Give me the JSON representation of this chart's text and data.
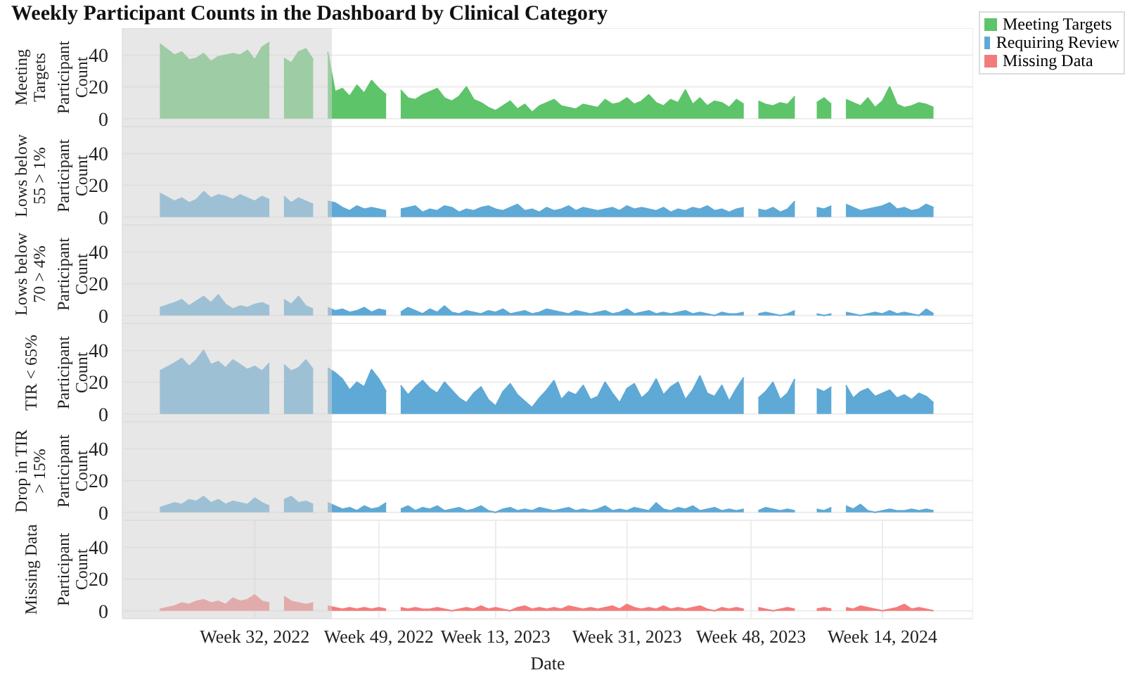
{
  "chart_data": [
    {
      "type": "area",
      "title": "Weekly Participant Counts in the Dashboard by Clinical Category",
      "subtitle": "Meeting Targets",
      "ylabel": "Participant Count",
      "legend": "top right",
      "grid": true,
      "tick_labels": "y",
      "xlim": [
        "2022-04-03",
        "2024-06-27"
      ],
      "ylim": [
        -5,
        57
      ],
      "yticks": [
        0,
        20,
        40
      ],
      "xticks": [
        {
          "value": "2022-08-08",
          "label": null
        },
        {
          "value": "2022-12-05",
          "label": null
        },
        {
          "value": "2023-03-27",
          "label": null
        },
        {
          "value": "2023-07-31",
          "label": null
        },
        {
          "value": "2023-11-27",
          "label": null
        },
        {
          "value": "2024-04-01",
          "label": null
        }
      ],
      "bands": [
        {
          "axis": "x",
          "from": "2022-04-03",
          "to": "2022-10-21",
          "color": "#d4d4d4"
        }
      ],
      "x": [
        "2022-05-09",
        "2022-05-23",
        "2022-05-30",
        "2022-06-06",
        "2022-06-13",
        "2022-06-20",
        "2022-06-27",
        "2022-07-04",
        "2022-07-11",
        "2022-07-18",
        "2022-07-25",
        "2022-08-01",
        "2022-08-08",
        "2022-08-15",
        "2022-08-22",
        "2022-08-29",
        "2022-09-05",
        "2022-09-12",
        "2022-09-19",
        "2022-09-26",
        "2022-10-03",
        "2022-10-10",
        "2022-10-17",
        "2022-10-24",
        "2022-10-31",
        "2022-11-07",
        "2022-11-14",
        "2022-11-21",
        "2022-11-28",
        "2022-12-05",
        "2022-12-12",
        "2022-12-19",
        "2022-12-26",
        "2023-01-02",
        "2023-01-09",
        "2023-01-16",
        "2023-01-23",
        "2023-01-30",
        "2023-02-06",
        "2023-02-13",
        "2023-02-20",
        "2023-02-27",
        "2023-03-06",
        "2023-03-13",
        "2023-03-20",
        "2023-03-27",
        "2023-04-03",
        "2023-04-10",
        "2023-04-17",
        "2023-04-24",
        "2023-05-01",
        "2023-05-08",
        "2023-05-15",
        "2023-05-22",
        "2023-05-29",
        "2023-06-05",
        "2023-06-12",
        "2023-06-19",
        "2023-06-26",
        "2023-07-03",
        "2023-07-10",
        "2023-07-17",
        "2023-07-24",
        "2023-07-31",
        "2023-08-07",
        "2023-08-14",
        "2023-08-21",
        "2023-08-28",
        "2023-09-04",
        "2023-09-11",
        "2023-09-18",
        "2023-09-25",
        "2023-10-02",
        "2023-10-09",
        "2023-10-16",
        "2023-10-23",
        "2023-10-30",
        "2023-11-06",
        "2023-11-13",
        "2023-11-20",
        "2023-11-27",
        "2023-12-04",
        "2023-12-11",
        "2023-12-18",
        "2023-12-25",
        "2024-01-01",
        "2024-01-08",
        "2024-01-15",
        "2024-01-22",
        "2024-01-29",
        "2024-02-05",
        "2024-02-12",
        "2024-02-19",
        "2024-02-26",
        "2024-03-04",
        "2024-03-11",
        "2024-03-18",
        "2024-03-25",
        "2024-04-01",
        "2024-04-08",
        "2024-04-15",
        "2024-04-22",
        "2024-04-29",
        "2024-05-06",
        "2024-05-13",
        "2024-05-20"
      ],
      "series": [
        {
          "name": "Meeting Targets",
          "color": "#5ec46a",
          "values": [
            47,
            40,
            42,
            37,
            38,
            41,
            36,
            39,
            40,
            41,
            40,
            43,
            37,
            45,
            48,
            null,
            38,
            35,
            42,
            44,
            37,
            null,
            42,
            17,
            19,
            14,
            21,
            16,
            24,
            19,
            15,
            null,
            18,
            13,
            12,
            15,
            17,
            19,
            13,
            11,
            14,
            20,
            12,
            10,
            7,
            5,
            8,
            11,
            6,
            9,
            4,
            8,
            10,
            12,
            8,
            7,
            6,
            9,
            8,
            7,
            12,
            9,
            10,
            13,
            9,
            11,
            15,
            10,
            8,
            12,
            10,
            18,
            9,
            13,
            8,
            11,
            10,
            7,
            12,
            9,
            null,
            11,
            9,
            8,
            10,
            9,
            14,
            null,
            null,
            10,
            13,
            9,
            null,
            12,
            10,
            8,
            13,
            7,
            11,
            20,
            9,
            7,
            8,
            10,
            9,
            7
          ]
        }
      ]
    },
    {
      "type": "area",
      "subtitle": "Lows below 55 > 1%",
      "ylabel": "Participant Count",
      "grid": true,
      "tick_labels": "y",
      "xlim": [
        "2022-04-03",
        "2024-06-27"
      ],
      "ylim": [
        -5,
        57
      ],
      "yticks": [
        0,
        20,
        40
      ],
      "xticks": [
        {
          "value": "2022-08-08",
          "label": null
        },
        {
          "value": "2022-12-05",
          "label": null
        },
        {
          "value": "2023-03-27",
          "label": null
        },
        {
          "value": "2023-07-31",
          "label": null
        },
        {
          "value": "2023-11-27",
          "label": null
        },
        {
          "value": "2024-04-01",
          "label": null
        }
      ],
      "bands": [
        {
          "axis": "x",
          "from": "2022-04-03",
          "to": "2022-10-21",
          "color": "#d4d4d4"
        }
      ],
      "x": [
        "2022-05-09",
        "2022-05-23",
        "2022-05-30",
        "2022-06-06",
        "2022-06-13",
        "2022-06-20",
        "2022-06-27",
        "2022-07-04",
        "2022-07-11",
        "2022-07-18",
        "2022-07-25",
        "2022-08-01",
        "2022-08-08",
        "2022-08-15",
        "2022-08-22",
        "2022-08-29",
        "2022-09-05",
        "2022-09-12",
        "2022-09-19",
        "2022-09-26",
        "2022-10-03",
        "2022-10-10",
        "2022-10-17",
        "2022-10-24",
        "2022-10-31",
        "2022-11-07",
        "2022-11-14",
        "2022-11-21",
        "2022-11-28",
        "2022-12-05",
        "2022-12-12",
        "2022-12-19",
        "2022-12-26",
        "2023-01-02",
        "2023-01-09",
        "2023-01-16",
        "2023-01-23",
        "2023-01-30",
        "2023-02-06",
        "2023-02-13",
        "2023-02-20",
        "2023-02-27",
        "2023-03-06",
        "2023-03-13",
        "2023-03-20",
        "2023-03-27",
        "2023-04-03",
        "2023-04-10",
        "2023-04-17",
        "2023-04-24",
        "2023-05-01",
        "2023-05-08",
        "2023-05-15",
        "2023-05-22",
        "2023-05-29",
        "2023-06-05",
        "2023-06-12",
        "2023-06-19",
        "2023-06-26",
        "2023-07-03",
        "2023-07-10",
        "2023-07-17",
        "2023-07-24",
        "2023-07-31",
        "2023-08-07",
        "2023-08-14",
        "2023-08-21",
        "2023-08-28",
        "2023-09-04",
        "2023-09-11",
        "2023-09-18",
        "2023-09-25",
        "2023-10-02",
        "2023-10-09",
        "2023-10-16",
        "2023-10-23",
        "2023-10-30",
        "2023-11-06",
        "2023-11-13",
        "2023-11-20",
        "2023-11-27",
        "2023-12-04",
        "2023-12-11",
        "2023-12-18",
        "2023-12-25",
        "2024-01-01",
        "2024-01-08",
        "2024-01-15",
        "2024-01-22",
        "2024-01-29",
        "2024-02-05",
        "2024-02-12",
        "2024-02-19",
        "2024-02-26",
        "2024-03-04",
        "2024-03-11",
        "2024-03-18",
        "2024-03-25",
        "2024-04-01",
        "2024-04-08",
        "2024-04-15",
        "2024-04-22",
        "2024-04-29",
        "2024-05-06",
        "2024-05-13",
        "2024-05-20"
      ],
      "series": [
        {
          "name": "Requiring Review",
          "color": "#5ea9d6",
          "values": [
            15,
            10,
            12,
            9,
            11,
            16,
            12,
            14,
            13,
            11,
            14,
            12,
            10,
            13,
            11,
            null,
            13,
            9,
            12,
            10,
            8,
            null,
            10,
            9,
            6,
            4,
            7,
            5,
            6,
            5,
            4,
            null,
            5,
            6,
            7,
            3,
            5,
            4,
            7,
            6,
            3,
            5,
            4,
            6,
            7,
            5,
            4,
            6,
            8,
            4,
            5,
            3,
            6,
            4,
            5,
            7,
            4,
            6,
            5,
            4,
            5,
            6,
            4,
            7,
            5,
            6,
            5,
            4,
            6,
            3,
            5,
            4,
            6,
            5,
            7,
            4,
            5,
            3,
            5,
            6,
            null,
            5,
            4,
            6,
            3,
            5,
            10,
            null,
            null,
            6,
            5,
            7,
            null,
            8,
            6,
            4,
            5,
            6,
            7,
            9,
            5,
            6,
            4,
            5,
            8,
            6
          ]
        }
      ]
    },
    {
      "type": "area",
      "subtitle": "Lows below 70 > 4%",
      "ylabel": "Participant Count",
      "grid": true,
      "tick_labels": "y",
      "xlim": [
        "2022-04-03",
        "2024-06-27"
      ],
      "ylim": [
        -5,
        57
      ],
      "yticks": [
        0,
        20,
        40
      ],
      "xticks": [
        {
          "value": "2022-08-08",
          "label": null
        },
        {
          "value": "2022-12-05",
          "label": null
        },
        {
          "value": "2023-03-27",
          "label": null
        },
        {
          "value": "2023-07-31",
          "label": null
        },
        {
          "value": "2023-11-27",
          "label": null
        },
        {
          "value": "2024-04-01",
          "label": null
        }
      ],
      "bands": [
        {
          "axis": "x",
          "from": "2022-04-03",
          "to": "2022-10-21",
          "color": "#d4d4d4"
        }
      ],
      "x": [
        "2022-05-09",
        "2022-05-23",
        "2022-05-30",
        "2022-06-06",
        "2022-06-13",
        "2022-06-20",
        "2022-06-27",
        "2022-07-04",
        "2022-07-11",
        "2022-07-18",
        "2022-07-25",
        "2022-08-01",
        "2022-08-08",
        "2022-08-15",
        "2022-08-22",
        "2022-08-29",
        "2022-09-05",
        "2022-09-12",
        "2022-09-19",
        "2022-09-26",
        "2022-10-03",
        "2022-10-10",
        "2022-10-17",
        "2022-10-24",
        "2022-10-31",
        "2022-11-07",
        "2022-11-14",
        "2022-11-21",
        "2022-11-28",
        "2022-12-05",
        "2022-12-12",
        "2022-12-19",
        "2022-12-26",
        "2023-01-02",
        "2023-01-09",
        "2023-01-16",
        "2023-01-23",
        "2023-01-30",
        "2023-02-06",
        "2023-02-13",
        "2023-02-20",
        "2023-02-27",
        "2023-03-06",
        "2023-03-13",
        "2023-03-20",
        "2023-03-27",
        "2023-04-03",
        "2023-04-10",
        "2023-04-17",
        "2023-04-24",
        "2023-05-01",
        "2023-05-08",
        "2023-05-15",
        "2023-05-22",
        "2023-05-29",
        "2023-06-05",
        "2023-06-12",
        "2023-06-19",
        "2023-06-26",
        "2023-07-03",
        "2023-07-10",
        "2023-07-17",
        "2023-07-24",
        "2023-07-31",
        "2023-08-07",
        "2023-08-14",
        "2023-08-21",
        "2023-08-28",
        "2023-09-04",
        "2023-09-11",
        "2023-09-18",
        "2023-09-25",
        "2023-10-02",
        "2023-10-09",
        "2023-10-16",
        "2023-10-23",
        "2023-10-30",
        "2023-11-06",
        "2023-11-13",
        "2023-11-20",
        "2023-11-27",
        "2023-12-04",
        "2023-12-11",
        "2023-12-18",
        "2023-12-25",
        "2024-01-01",
        "2024-01-08",
        "2024-01-15",
        "2024-01-22",
        "2024-01-29",
        "2024-02-05",
        "2024-02-12",
        "2024-02-19",
        "2024-02-26",
        "2024-03-04",
        "2024-03-11",
        "2024-03-18",
        "2024-03-25",
        "2024-04-01",
        "2024-04-08",
        "2024-04-15",
        "2024-04-22",
        "2024-04-29",
        "2024-05-06",
        "2024-05-13",
        "2024-05-20"
      ],
      "series": [
        {
          "name": "Requiring Review",
          "color": "#5ea9d6",
          "values": [
            5,
            8,
            10,
            6,
            9,
            12,
            8,
            13,
            7,
            4,
            6,
            5,
            7,
            8,
            6,
            null,
            10,
            7,
            12,
            6,
            4,
            null,
            5,
            3,
            4,
            2,
            3,
            5,
            2,
            4,
            3,
            null,
            2,
            5,
            3,
            1,
            4,
            2,
            6,
            2,
            1,
            3,
            2,
            1,
            3,
            2,
            4,
            1,
            2,
            3,
            1,
            2,
            4,
            3,
            2,
            1,
            3,
            2,
            1,
            2,
            3,
            1,
            2,
            4,
            1,
            2,
            3,
            1,
            2,
            1,
            2,
            3,
            1,
            2,
            1,
            0,
            2,
            1,
            1,
            2,
            null,
            1,
            2,
            1,
            0,
            1,
            3,
            null,
            null,
            1,
            0,
            1,
            null,
            2,
            1,
            0,
            1,
            2,
            1,
            3,
            1,
            2,
            1,
            0,
            4,
            1
          ]
        }
      ]
    },
    {
      "type": "area",
      "subtitle": "TIR < 65%",
      "ylabel": "Participant Count",
      "grid": true,
      "tick_labels": "y",
      "xlim": [
        "2022-04-03",
        "2024-06-27"
      ],
      "ylim": [
        -5,
        57
      ],
      "yticks": [
        0,
        20,
        40
      ],
      "xticks": [
        {
          "value": "2022-08-08",
          "label": null
        },
        {
          "value": "2022-12-05",
          "label": null
        },
        {
          "value": "2023-03-27",
          "label": null
        },
        {
          "value": "2023-07-31",
          "label": null
        },
        {
          "value": "2023-11-27",
          "label": null
        },
        {
          "value": "2024-04-01",
          "label": null
        }
      ],
      "bands": [
        {
          "axis": "x",
          "from": "2022-04-03",
          "to": "2022-10-21",
          "color": "#d4d4d4"
        }
      ],
      "x": [
        "2022-05-09",
        "2022-05-23",
        "2022-05-30",
        "2022-06-06",
        "2022-06-13",
        "2022-06-20",
        "2022-06-27",
        "2022-07-04",
        "2022-07-11",
        "2022-07-18",
        "2022-07-25",
        "2022-08-01",
        "2022-08-08",
        "2022-08-15",
        "2022-08-22",
        "2022-08-29",
        "2022-09-05",
        "2022-09-12",
        "2022-09-19",
        "2022-09-26",
        "2022-10-03",
        "2022-10-10",
        "2022-10-17",
        "2022-10-24",
        "2022-10-31",
        "2022-11-07",
        "2022-11-14",
        "2022-11-21",
        "2022-11-28",
        "2022-12-05",
        "2022-12-12",
        "2022-12-19",
        "2022-12-26",
        "2023-01-02",
        "2023-01-09",
        "2023-01-16",
        "2023-01-23",
        "2023-01-30",
        "2023-02-06",
        "2023-02-13",
        "2023-02-20",
        "2023-02-27",
        "2023-03-06",
        "2023-03-13",
        "2023-03-20",
        "2023-03-27",
        "2023-04-03",
        "2023-04-10",
        "2023-04-17",
        "2023-04-24",
        "2023-05-01",
        "2023-05-08",
        "2023-05-15",
        "2023-05-22",
        "2023-05-29",
        "2023-06-05",
        "2023-06-12",
        "2023-06-19",
        "2023-06-26",
        "2023-07-03",
        "2023-07-10",
        "2023-07-17",
        "2023-07-24",
        "2023-07-31",
        "2023-08-07",
        "2023-08-14",
        "2023-08-21",
        "2023-08-28",
        "2023-09-04",
        "2023-09-11",
        "2023-09-18",
        "2023-09-25",
        "2023-10-02",
        "2023-10-09",
        "2023-10-16",
        "2023-10-23",
        "2023-10-30",
        "2023-11-06",
        "2023-11-13",
        "2023-11-20",
        "2023-11-27",
        "2023-12-04",
        "2023-12-11",
        "2023-12-18",
        "2023-12-25",
        "2024-01-01",
        "2024-01-08",
        "2024-01-15",
        "2024-01-22",
        "2024-01-29",
        "2024-02-05",
        "2024-02-12",
        "2024-02-19",
        "2024-02-26",
        "2024-03-04",
        "2024-03-11",
        "2024-03-18",
        "2024-03-25",
        "2024-04-01",
        "2024-04-08",
        "2024-04-15",
        "2024-04-22",
        "2024-04-29",
        "2024-05-06",
        "2024-05-13",
        "2024-05-20"
      ],
      "series": [
        {
          "name": "Requiring Review",
          "color": "#5ea9d6",
          "values": [
            27,
            32,
            35,
            30,
            34,
            40,
            31,
            33,
            29,
            34,
            31,
            28,
            30,
            27,
            32,
            null,
            31,
            27,
            29,
            34,
            28,
            null,
            29,
            26,
            22,
            15,
            20,
            17,
            28,
            22,
            14,
            null,
            18,
            12,
            17,
            21,
            16,
            13,
            20,
            15,
            10,
            7,
            13,
            17,
            9,
            5,
            14,
            19,
            12,
            8,
            4,
            10,
            15,
            21,
            9,
            14,
            12,
            18,
            9,
            11,
            20,
            13,
            7,
            16,
            19,
            10,
            14,
            22,
            12,
            17,
            20,
            9,
            15,
            24,
            13,
            11,
            18,
            8,
            16,
            23,
            null,
            10,
            14,
            20,
            9,
            13,
            22,
            null,
            null,
            16,
            14,
            17,
            null,
            18,
            10,
            14,
            16,
            11,
            13,
            15,
            10,
            12,
            9,
            13,
            11,
            7
          ]
        }
      ]
    },
    {
      "type": "area",
      "subtitle": "Drop in TIR > 15%",
      "ylabel": "Participant Count",
      "grid": true,
      "tick_labels": "y",
      "xlim": [
        "2022-04-03",
        "2024-06-27"
      ],
      "ylim": [
        -5,
        57
      ],
      "yticks": [
        0,
        20,
        40
      ],
      "xticks": [
        {
          "value": "2022-08-08",
          "label": null
        },
        {
          "value": "2022-12-05",
          "label": null
        },
        {
          "value": "2023-03-27",
          "label": null
        },
        {
          "value": "2023-07-31",
          "label": null
        },
        {
          "value": "2023-11-27",
          "label": null
        },
        {
          "value": "2024-04-01",
          "label": null
        }
      ],
      "bands": [
        {
          "axis": "x",
          "from": "2022-04-03",
          "to": "2022-10-21",
          "color": "#d4d4d4"
        }
      ],
      "x": [
        "2022-05-09",
        "2022-05-23",
        "2022-05-30",
        "2022-06-06",
        "2022-06-13",
        "2022-06-20",
        "2022-06-27",
        "2022-07-04",
        "2022-07-11",
        "2022-07-18",
        "2022-07-25",
        "2022-08-01",
        "2022-08-08",
        "2022-08-15",
        "2022-08-22",
        "2022-08-29",
        "2022-09-05",
        "2022-09-12",
        "2022-09-19",
        "2022-09-26",
        "2022-10-03",
        "2022-10-10",
        "2022-10-17",
        "2022-10-24",
        "2022-10-31",
        "2022-11-07",
        "2022-11-14",
        "2022-11-21",
        "2022-11-28",
        "2022-12-05",
        "2022-12-12",
        "2022-12-19",
        "2022-12-26",
        "2023-01-02",
        "2023-01-09",
        "2023-01-16",
        "2023-01-23",
        "2023-01-30",
        "2023-02-06",
        "2023-02-13",
        "2023-02-20",
        "2023-02-27",
        "2023-03-06",
        "2023-03-13",
        "2023-03-20",
        "2023-03-27",
        "2023-04-03",
        "2023-04-10",
        "2023-04-17",
        "2023-04-24",
        "2023-05-01",
        "2023-05-08",
        "2023-05-15",
        "2023-05-22",
        "2023-05-29",
        "2023-06-05",
        "2023-06-12",
        "2023-06-19",
        "2023-06-26",
        "2023-07-03",
        "2023-07-10",
        "2023-07-17",
        "2023-07-24",
        "2023-07-31",
        "2023-08-07",
        "2023-08-14",
        "2023-08-21",
        "2023-08-28",
        "2023-09-04",
        "2023-09-11",
        "2023-09-18",
        "2023-09-25",
        "2023-10-02",
        "2023-10-09",
        "2023-10-16",
        "2023-10-23",
        "2023-10-30",
        "2023-11-06",
        "2023-11-13",
        "2023-11-20",
        "2023-11-27",
        "2023-12-04",
        "2023-12-11",
        "2023-12-18",
        "2023-12-25",
        "2024-01-01",
        "2024-01-08",
        "2024-01-15",
        "2024-01-22",
        "2024-01-29",
        "2024-02-05",
        "2024-02-12",
        "2024-02-19",
        "2024-02-26",
        "2024-03-04",
        "2024-03-11",
        "2024-03-18",
        "2024-03-25",
        "2024-04-01",
        "2024-04-08",
        "2024-04-15",
        "2024-04-22",
        "2024-04-29",
        "2024-05-06",
        "2024-05-13",
        "2024-05-20"
      ],
      "series": [
        {
          "name": "Requiring Review",
          "color": "#5ea9d6",
          "values": [
            3,
            6,
            5,
            8,
            7,
            10,
            6,
            8,
            5,
            7,
            6,
            5,
            9,
            6,
            4,
            null,
            8,
            10,
            6,
            7,
            5,
            null,
            6,
            4,
            2,
            3,
            1,
            4,
            2,
            3,
            6,
            null,
            2,
            4,
            1,
            3,
            2,
            4,
            1,
            2,
            3,
            1,
            2,
            4,
            1,
            0,
            2,
            3,
            1,
            2,
            1,
            3,
            2,
            1,
            2,
            3,
            1,
            2,
            1,
            2,
            4,
            1,
            2,
            1,
            3,
            2,
            1,
            6,
            2,
            1,
            3,
            2,
            4,
            1,
            2,
            3,
            1,
            2,
            1,
            2,
            null,
            1,
            3,
            2,
            1,
            2,
            1,
            null,
            null,
            2,
            1,
            3,
            null,
            4,
            2,
            5,
            1,
            0,
            1,
            2,
            1,
            1,
            2,
            1,
            2,
            1
          ]
        }
      ]
    },
    {
      "type": "area",
      "subtitle": "Missing Data",
      "ylabel": "Participant Count",
      "xlabel": "Date",
      "grid": true,
      "xlim": [
        "2022-04-03",
        "2024-06-27"
      ],
      "ylim": [
        -5,
        57
      ],
      "yticks": [
        0,
        20,
        40
      ],
      "xticks": [
        {
          "value": "2022-08-08",
          "label": "Week 32, 2022"
        },
        {
          "value": "2022-12-05",
          "label": "Week 49, 2022"
        },
        {
          "value": "2023-03-27",
          "label": "Week 13, 2023"
        },
        {
          "value": "2023-07-31",
          "label": "Week 31, 2023"
        },
        {
          "value": "2023-11-27",
          "label": "Week 48, 2023"
        },
        {
          "value": "2024-04-01",
          "label": "Week 14, 2024"
        }
      ],
      "bands": [
        {
          "axis": "x",
          "from": "2022-04-03",
          "to": "2022-10-21",
          "color": "#d4d4d4"
        }
      ],
      "x": [
        "2022-05-09",
        "2022-05-23",
        "2022-05-30",
        "2022-06-06",
        "2022-06-13",
        "2022-06-20",
        "2022-06-27",
        "2022-07-04",
        "2022-07-11",
        "2022-07-18",
        "2022-07-25",
        "2022-08-01",
        "2022-08-08",
        "2022-08-15",
        "2022-08-22",
        "2022-08-29",
        "2022-09-05",
        "2022-09-12",
        "2022-09-19",
        "2022-09-26",
        "2022-10-03",
        "2022-10-10",
        "2022-10-17",
        "2022-10-24",
        "2022-10-31",
        "2022-11-07",
        "2022-11-14",
        "2022-11-21",
        "2022-11-28",
        "2022-12-05",
        "2022-12-12",
        "2022-12-19",
        "2022-12-26",
        "2023-01-02",
        "2023-01-09",
        "2023-01-16",
        "2023-01-23",
        "2023-01-30",
        "2023-02-06",
        "2023-02-13",
        "2023-02-20",
        "2023-02-27",
        "2023-03-06",
        "2023-03-13",
        "2023-03-20",
        "2023-03-27",
        "2023-04-03",
        "2023-04-10",
        "2023-04-17",
        "2023-04-24",
        "2023-05-01",
        "2023-05-08",
        "2023-05-15",
        "2023-05-22",
        "2023-05-29",
        "2023-06-05",
        "2023-06-12",
        "2023-06-19",
        "2023-06-26",
        "2023-07-03",
        "2023-07-10",
        "2023-07-17",
        "2023-07-24",
        "2023-07-31",
        "2023-08-07",
        "2023-08-14",
        "2023-08-21",
        "2023-08-28",
        "2023-09-04",
        "2023-09-11",
        "2023-09-18",
        "2023-09-25",
        "2023-10-02",
        "2023-10-09",
        "2023-10-16",
        "2023-10-23",
        "2023-10-30",
        "2023-11-06",
        "2023-11-13",
        "2023-11-20",
        "2023-11-27",
        "2023-12-04",
        "2023-12-11",
        "2023-12-18",
        "2023-12-25",
        "2024-01-01",
        "2024-01-08",
        "2024-01-15",
        "2024-01-22",
        "2024-01-29",
        "2024-02-05",
        "2024-02-12",
        "2024-02-19",
        "2024-02-26",
        "2024-03-04",
        "2024-03-11",
        "2024-03-18",
        "2024-03-25",
        "2024-04-01",
        "2024-04-08",
        "2024-04-15",
        "2024-04-22",
        "2024-04-29",
        "2024-05-06",
        "2024-05-13",
        "2024-05-20"
      ],
      "series": [
        {
          "name": "Missing Data",
          "color": "#f47b7b",
          "values": [
            1,
            3,
            5,
            4,
            6,
            7,
            5,
            6,
            4,
            8,
            6,
            7,
            10,
            6,
            5,
            null,
            9,
            6,
            5,
            4,
            5,
            null,
            3,
            2,
            1,
            2,
            1,
            2,
            1,
            2,
            1,
            null,
            2,
            1,
            2,
            1,
            1,
            2,
            1,
            0,
            1,
            2,
            1,
            3,
            1,
            2,
            1,
            0,
            2,
            3,
            1,
            2,
            1,
            2,
            1,
            3,
            2,
            1,
            2,
            1,
            2,
            3,
            1,
            4,
            2,
            1,
            2,
            1,
            3,
            1,
            2,
            1,
            2,
            3,
            1,
            0,
            2,
            1,
            2,
            1,
            null,
            2,
            1,
            0,
            1,
            2,
            1,
            null,
            null,
            1,
            2,
            1,
            null,
            2,
            1,
            3,
            2,
            1,
            0,
            1,
            2,
            4,
            1,
            2,
            1,
            0
          ]
        }
      ]
    }
  ]
}
